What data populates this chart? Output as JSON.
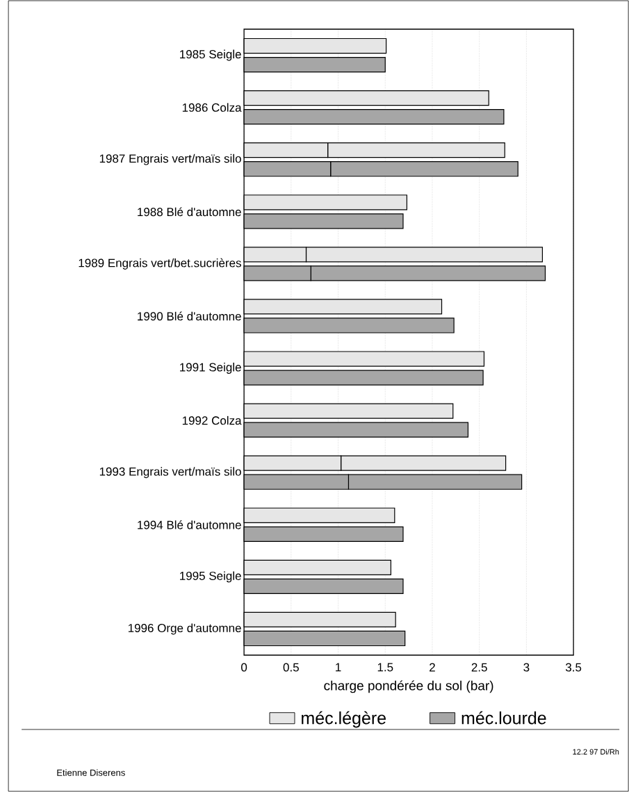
{
  "chart_data": {
    "type": "bar",
    "orientation": "horizontal",
    "categories": [
      "1985 Seigle",
      "1986 Colza",
      "1987 Engrais vert/maïs silo",
      "1988 Blé d'automne",
      "1989 Engrais vert/bet.sucrières",
      "1990 Blé d'automne",
      "1991 Seigle",
      "1992 Colza",
      "1993 Engrais vert/maïs silo",
      "1994 Blé d'automne",
      "1995 Seigle",
      "1996 Orge d'automne"
    ],
    "series": [
      {
        "name": "méc.légère",
        "color": "#e6e6e6",
        "values": [
          1.51,
          2.6,
          1.88,
          1.73,
          2.51,
          2.1,
          2.55,
          2.22,
          1.75,
          1.6,
          1.56,
          1.61
        ],
        "base": [
          0,
          0,
          0.89,
          0,
          0.66,
          0,
          0,
          0,
          1.03,
          0,
          0,
          0
        ]
      },
      {
        "color": "#e6e6e6",
        "values": [
          null,
          null,
          0.89,
          null,
          0.66,
          null,
          null,
          null,
          1.03,
          null,
          null,
          null
        ]
      },
      {
        "name": "méc.lourde",
        "color": "#a6a6a6",
        "values": [
          1.5,
          2.76,
          1.99,
          1.69,
          2.49,
          2.23,
          2.54,
          2.38,
          1.84,
          1.69,
          1.69,
          1.71
        ],
        "base": [
          0,
          0,
          0.92,
          0,
          0.71,
          0,
          0,
          0,
          1.11,
          0,
          0,
          0
        ]
      },
      {
        "color": "#a6a6a6",
        "values": [
          null,
          null,
          0.92,
          null,
          0.71,
          null,
          null,
          null,
          1.11,
          null,
          null,
          null
        ]
      }
    ],
    "xlim": [
      0,
      3.5
    ],
    "xticks": [
      0,
      0.5,
      1,
      1.5,
      2,
      2.5,
      3,
      3.5
    ],
    "xlabel": "charge pondérée du sol (bar)",
    "grid": "x",
    "legend": "bottom",
    "annotations": [
      "Etienne Diserens",
      "12.2 97 Di/Rh"
    ]
  }
}
